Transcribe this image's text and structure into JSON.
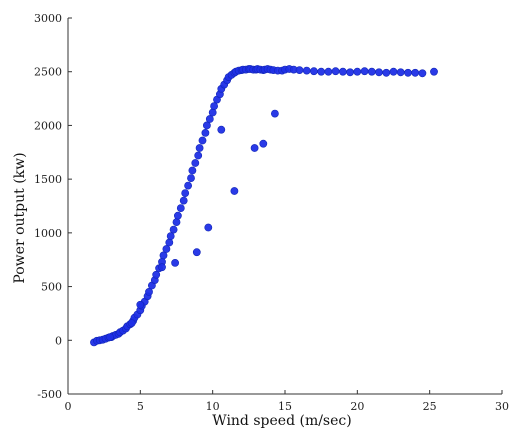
{
  "chart_data": {
    "type": "scatter",
    "title": "",
    "xlabel": "Wind speed (m/sec)",
    "ylabel": "Power output (kw)",
    "xlim": [
      0,
      30
    ],
    "ylim": [
      -500,
      3000
    ],
    "x_ticks": [
      0,
      5,
      10,
      15,
      20,
      25,
      30
    ],
    "y_ticks": [
      -500,
      0,
      500,
      1000,
      1500,
      2000,
      2500,
      3000
    ],
    "x_tick_labels": [
      "0",
      "5",
      "10",
      "15",
      "20",
      "25",
      "30"
    ],
    "y_tick_labels": [
      "-500",
      "0",
      "500",
      "1000",
      "1500",
      "2000",
      "2500",
      "3000"
    ],
    "grid": false,
    "point_color": "#1f2fe6",
    "series": [
      {
        "x": [
          1.8,
          2.0,
          2.2,
          2.4,
          2.6,
          2.8,
          3.0,
          3.1,
          3.3,
          3.5,
          3.6,
          3.8,
          4.0,
          4.1,
          4.3,
          4.5,
          4.6,
          4.8,
          5.0,
          5.1,
          5.3,
          5.5,
          5.6,
          5.8,
          6.0,
          6.1,
          6.3,
          6.5,
          6.6,
          6.8,
          7.0,
          7.1,
          7.3,
          7.5,
          7.6,
          7.8,
          8.0,
          8.1,
          8.3,
          8.5,
          8.6,
          8.8,
          9.0,
          9.1,
          9.3,
          9.5,
          9.6,
          9.8,
          10.0,
          10.1,
          10.3,
          10.5,
          10.6,
          10.8,
          11.0,
          11.1,
          11.3,
          11.5,
          11.6,
          11.8,
          12.0,
          12.1,
          12.3,
          12.5,
          12.6,
          12.8,
          13.0,
          13.1,
          13.3,
          13.5,
          13.6,
          13.8,
          14.0,
          14.2,
          14.5,
          14.8,
          15.0,
          15.3,
          15.6,
          16.0,
          16.5,
          17.0,
          17.5,
          18.0,
          18.5,
          19.0,
          19.5,
          20.0,
          20.5,
          21.0,
          21.5,
          22.0,
          22.5,
          23.0,
          23.5,
          24.0,
          24.5,
          25.3,
          5.0,
          6.5,
          8.9,
          11.5,
          12.9,
          13.5,
          14.3,
          10.6,
          9.7,
          7.4,
          2.9,
          4.4
        ],
        "y": [
          -20,
          -5,
          0,
          5,
          15,
          25,
          30,
          40,
          50,
          60,
          75,
          90,
          110,
          130,
          150,
          180,
          210,
          240,
          280,
          320,
          360,
          410,
          450,
          510,
          560,
          610,
          670,
          730,
          790,
          850,
          910,
          970,
          1030,
          1100,
          1160,
          1230,
          1300,
          1370,
          1440,
          1510,
          1580,
          1650,
          1720,
          1790,
          1860,
          1930,
          2000,
          2060,
          2120,
          2180,
          2240,
          2290,
          2340,
          2380,
          2420,
          2450,
          2470,
          2490,
          2500,
          2510,
          2515,
          2520,
          2520,
          2525,
          2525,
          2520,
          2520,
          2525,
          2520,
          2515,
          2520,
          2525,
          2520,
          2515,
          2510,
          2510,
          2520,
          2525,
          2520,
          2515,
          2510,
          2505,
          2500,
          2500,
          2505,
          2500,
          2495,
          2500,
          2505,
          2500,
          2495,
          2490,
          2500,
          2495,
          2490,
          2490,
          2485,
          2500,
          330,
          680,
          820,
          1390,
          1790,
          1830,
          2110,
          1960,
          1050,
          720,
          30,
          160
        ]
      }
    ]
  }
}
